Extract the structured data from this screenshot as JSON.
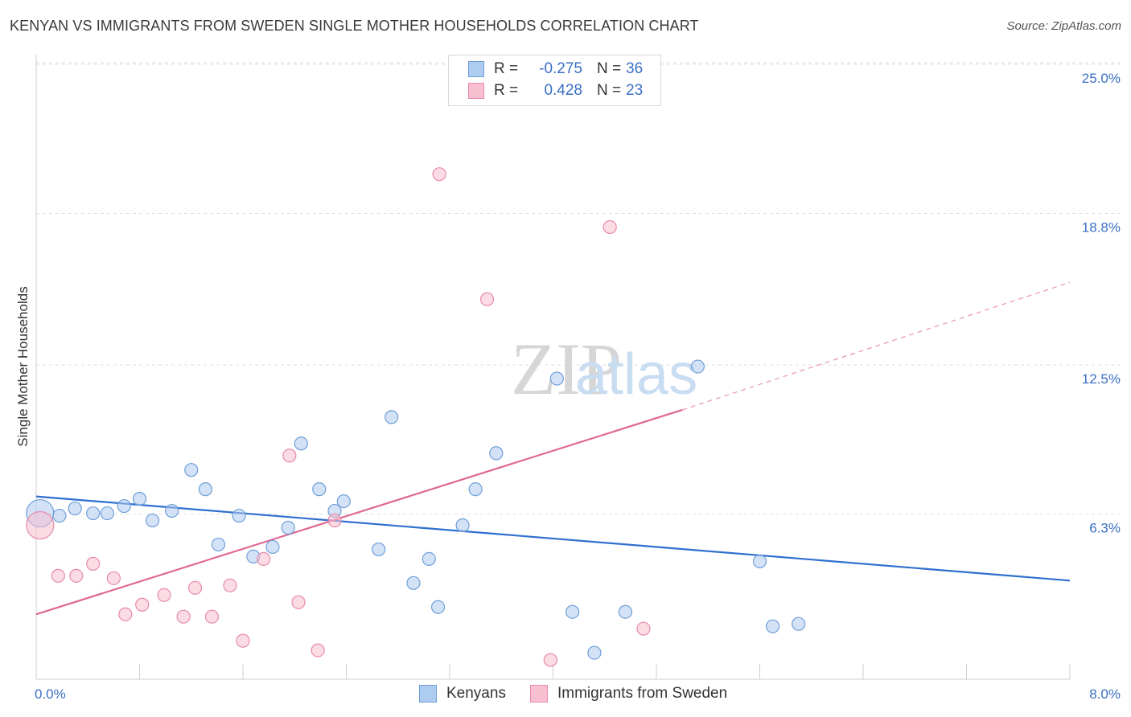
{
  "title": "KENYAN VS IMMIGRANTS FROM SWEDEN SINGLE MOTHER HOUSEHOLDS CORRELATION CHART",
  "source": "Source: ZipAtlas.com",
  "watermark": {
    "zip": "ZIP",
    "atlas": "atlas"
  },
  "legend": [
    {
      "r_label": "R =",
      "r_value": "-0.275",
      "n_label": "N =",
      "n_value": "36",
      "color": "#aecbf0",
      "border": "#6f9fd8"
    },
    {
      "r_label": "R =",
      "r_value": "0.428",
      "n_label": "N =",
      "n_value": "23",
      "color": "#f8bfd0",
      "border": "#e88aa8"
    }
  ],
  "chart_data": {
    "type": "scatter",
    "ylabel": "Single Mother Households",
    "xlim": [
      0.0,
      8.0
    ],
    "ylim": [
      0.0,
      25.0
    ],
    "x_tick_labels": [
      "0.0%",
      "8.0%"
    ],
    "y_ticks": [
      6.3,
      12.5,
      18.8,
      25.0
    ],
    "y_tick_labels": [
      "6.3%",
      "12.5%",
      "18.8%",
      "25.0%"
    ],
    "grid": true,
    "series": [
      {
        "name": "Kenyans",
        "color": "#aecbf0",
        "edge": "#6f9fd8",
        "line_color": "#2f6fcf",
        "trend": {
          "x": [
            0.0,
            8.0
          ],
          "y": [
            7.6,
            4.1
          ]
        },
        "points": [
          {
            "x": 0.03,
            "y": 6.9,
            "big": true
          },
          {
            "x": 0.18,
            "y": 6.8
          },
          {
            "x": 0.3,
            "y": 7.1
          },
          {
            "x": 0.44,
            "y": 6.9
          },
          {
            "x": 0.55,
            "y": 6.9
          },
          {
            "x": 0.68,
            "y": 7.2
          },
          {
            "x": 0.8,
            "y": 7.5
          },
          {
            "x": 0.9,
            "y": 6.6
          },
          {
            "x": 1.05,
            "y": 7.0
          },
          {
            "x": 1.2,
            "y": 8.7
          },
          {
            "x": 1.31,
            "y": 7.9
          },
          {
            "x": 1.41,
            "y": 5.6
          },
          {
            "x": 1.57,
            "y": 6.8
          },
          {
            "x": 1.68,
            "y": 5.1
          },
          {
            "x": 1.83,
            "y": 5.5
          },
          {
            "x": 1.95,
            "y": 6.3
          },
          {
            "x": 2.05,
            "y": 9.8
          },
          {
            "x": 2.19,
            "y": 7.9
          },
          {
            "x": 2.31,
            "y": 7.0
          },
          {
            "x": 2.38,
            "y": 7.4
          },
          {
            "x": 2.65,
            "y": 5.4
          },
          {
            "x": 2.75,
            "y": 10.9
          },
          {
            "x": 2.92,
            "y": 4.0
          },
          {
            "x": 3.04,
            "y": 5.0
          },
          {
            "x": 3.11,
            "y": 3.0
          },
          {
            "x": 3.3,
            "y": 6.4
          },
          {
            "x": 3.4,
            "y": 7.9
          },
          {
            "x": 3.56,
            "y": 9.4
          },
          {
            "x": 4.03,
            "y": 12.5
          },
          {
            "x": 4.15,
            "y": 2.8
          },
          {
            "x": 4.32,
            "y": 1.1
          },
          {
            "x": 4.56,
            "y": 2.8
          },
          {
            "x": 5.12,
            "y": 13.0
          },
          {
            "x": 5.6,
            "y": 4.9
          },
          {
            "x": 5.7,
            "y": 2.2
          },
          {
            "x": 5.9,
            "y": 2.3
          }
        ]
      },
      {
        "name": "Immigrants from Sweden",
        "color": "#f8bfd0",
        "edge": "#e88aa8",
        "line_color": "#e06890",
        "trend": {
          "x": [
            0.0,
            5.0
          ],
          "y": [
            2.7,
            11.2
          ]
        },
        "trend_dashed": {
          "x": [
            5.0,
            8.0
          ],
          "y": [
            11.2,
            16.5
          ]
        },
        "points": [
          {
            "x": 0.03,
            "y": 6.4,
            "big": true
          },
          {
            "x": 0.17,
            "y": 4.3
          },
          {
            "x": 0.31,
            "y": 4.3
          },
          {
            "x": 0.44,
            "y": 4.8
          },
          {
            "x": 0.6,
            "y": 4.2
          },
          {
            "x": 0.69,
            "y": 2.7
          },
          {
            "x": 0.82,
            "y": 3.1
          },
          {
            "x": 0.99,
            "y": 3.5
          },
          {
            "x": 1.14,
            "y": 2.6
          },
          {
            "x": 1.23,
            "y": 3.8
          },
          {
            "x": 1.36,
            "y": 2.6
          },
          {
            "x": 1.5,
            "y": 3.9
          },
          {
            "x": 1.6,
            "y": 1.6
          },
          {
            "x": 1.76,
            "y": 5.0
          },
          {
            "x": 1.96,
            "y": 9.3
          },
          {
            "x": 2.03,
            "y": 3.2
          },
          {
            "x": 2.18,
            "y": 1.2
          },
          {
            "x": 2.31,
            "y": 6.6
          },
          {
            "x": 3.12,
            "y": 21.0
          },
          {
            "x": 3.49,
            "y": 15.8
          },
          {
            "x": 3.98,
            "y": 0.8
          },
          {
            "x": 4.44,
            "y": 18.8
          },
          {
            "x": 4.7,
            "y": 2.1
          }
        ]
      }
    ]
  }
}
